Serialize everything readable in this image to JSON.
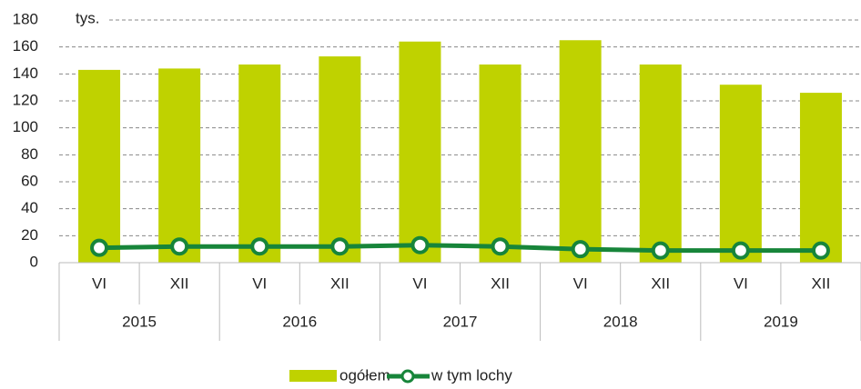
{
  "chart_data": {
    "type": "bar_line",
    "y_unit": "tys.",
    "categories": [
      "VI",
      "XII",
      "VI",
      "XII",
      "VI",
      "XII",
      "VI",
      "XII",
      "VI",
      "XII"
    ],
    "category_groups": [
      "2015",
      "2016",
      "2017",
      "2018",
      "2019"
    ],
    "series": [
      {
        "name": "ogółem",
        "type": "bar",
        "color": "#bfd200",
        "values": [
          143,
          144,
          147,
          153,
          164,
          147,
          165,
          147,
          132,
          126
        ]
      },
      {
        "name": "w tym lochy",
        "type": "line",
        "color": "#17853a",
        "values": [
          11,
          12,
          12,
          12,
          13,
          12,
          10,
          9,
          9,
          9
        ]
      }
    ],
    "ylim": [
      0,
      180
    ],
    "yticks": [
      0,
      20,
      40,
      60,
      80,
      100,
      120,
      140,
      160,
      180
    ],
    "grid": true,
    "legend": "bottom"
  }
}
